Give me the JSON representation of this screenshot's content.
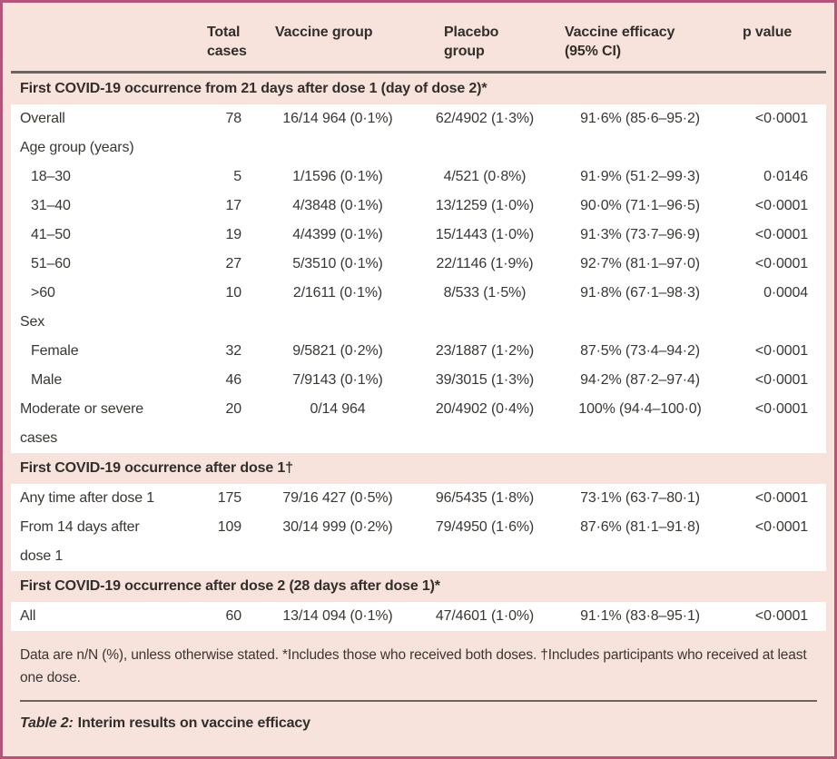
{
  "colors": {
    "frame_border": "#b6547c",
    "frame_background": "#f7e2dc",
    "header_rule": "#6b6562",
    "row_background": "#ffffff",
    "text": "#3a3632"
  },
  "table": {
    "columns": {
      "total": {
        "line1": "Total",
        "line2": "cases"
      },
      "vaccine": {
        "label": "Vaccine group"
      },
      "placebo": {
        "label": "Placebo group"
      },
      "efficacy": {
        "line1": "Vaccine efficacy",
        "line2": "(95% CI)"
      },
      "p": {
        "label": "p value"
      }
    },
    "rows": [
      {
        "type": "section",
        "label": "First COVID-19 occurrence from 21 days after dose 1 (day of dose 2)*"
      },
      {
        "type": "data",
        "indent": 0,
        "label": "Overall",
        "total": "78",
        "vaccine": "16/14 964 (0·1%)",
        "placebo": "62/4902 (1·3%)",
        "efficacy": "91·6% (85·6–95·2)",
        "p": "<0·0001"
      },
      {
        "type": "data",
        "indent": 0,
        "label": "Age group (years)",
        "total": "",
        "vaccine": "",
        "placebo": "",
        "efficacy": "",
        "p": ""
      },
      {
        "type": "data",
        "indent": 1,
        "label": "18–30",
        "total": "5",
        "vaccine": "1/1596 (0·1%)",
        "placebo": "4/521 (0·8%)",
        "efficacy": "91·9% (51·2–99·3)",
        "p": "0·0146"
      },
      {
        "type": "data",
        "indent": 1,
        "label": "31–40",
        "total": "17",
        "vaccine": "4/3848 (0·1%)",
        "placebo": "13/1259 (1·0%)",
        "efficacy": "90·0% (71·1–96·5)",
        "p": "<0·0001"
      },
      {
        "type": "data",
        "indent": 1,
        "label": "41–50",
        "total": "19",
        "vaccine": "4/4399 (0·1%)",
        "placebo": "15/1443 (1·0%)",
        "efficacy": "91·3% (73·7–96·9)",
        "p": "<0·0001"
      },
      {
        "type": "data",
        "indent": 1,
        "label": "51–60",
        "total": "27",
        "vaccine": "5/3510 (0·1%)",
        "placebo": "22/1146 (1·9%)",
        "efficacy": "92·7% (81·1–97·0)",
        "p": "<0·0001"
      },
      {
        "type": "data",
        "indent": 1,
        "label": ">60",
        "total": "10",
        "vaccine": "2/1611 (0·1%)",
        "placebo": "8/533 (1·5%)",
        "efficacy": "91·8% (67·1–98·3)",
        "p": "0·0004"
      },
      {
        "type": "data",
        "indent": 0,
        "label": "Sex",
        "total": "",
        "vaccine": "",
        "placebo": "",
        "efficacy": "",
        "p": ""
      },
      {
        "type": "data",
        "indent": 1,
        "label": "Female",
        "total": "32",
        "vaccine": "9/5821 (0·2%)",
        "placebo": "23/1887 (1·2%)",
        "efficacy": "87·5% (73·4–94·2)",
        "p": "<0·0001"
      },
      {
        "type": "data",
        "indent": 1,
        "label": "Male",
        "total": "46",
        "vaccine": "7/9143 (0·1%)",
        "placebo": "39/3015 (1·3%)",
        "efficacy": "94·2% (87·2–97·4)",
        "p": "<0·0001"
      },
      {
        "type": "data",
        "indent": 0,
        "label": "Moderate or severe cases",
        "total": "20",
        "vaccine": "0/14 964",
        "placebo": "20/4902 (0·4%)",
        "efficacy": "100% (94·4–100·0)",
        "p": "<0·0001"
      },
      {
        "type": "section",
        "label": "First COVID-19 occurrence after dose 1†"
      },
      {
        "type": "data",
        "indent": 0,
        "label": "Any time after dose 1",
        "total": "175",
        "vaccine": "79/16 427 (0·5%)",
        "placebo": "96/5435 (1·8%)",
        "efficacy": "73·1% (63·7–80·1)",
        "p": "<0·0001"
      },
      {
        "type": "data",
        "indent": 0,
        "label": "From 14 days after dose 1",
        "total": "109",
        "vaccine": "30/14 999 (0·2%)",
        "placebo": "79/4950 (1·6%)",
        "efficacy": "87·6% (81·1–91·8)",
        "p": "<0·0001"
      },
      {
        "type": "section",
        "label": "First COVID-19 occurrence after dose 2 (28 days after dose 1)*"
      },
      {
        "type": "data",
        "indent": 0,
        "label": "All",
        "total": "60",
        "vaccine": "13/14 094 (0·1%)",
        "placebo": "47/4601 (1·0%)",
        "efficacy": "91·1% (83·8–95·1)",
        "p": "<0·0001"
      }
    ],
    "footnote": "Data are n/N (%), unless otherwise stated. *Includes those who received both doses. †Includes participants who received at least one dose.",
    "caption_label": "Table 2:",
    "caption_title": "Interim results on vaccine efficacy"
  }
}
